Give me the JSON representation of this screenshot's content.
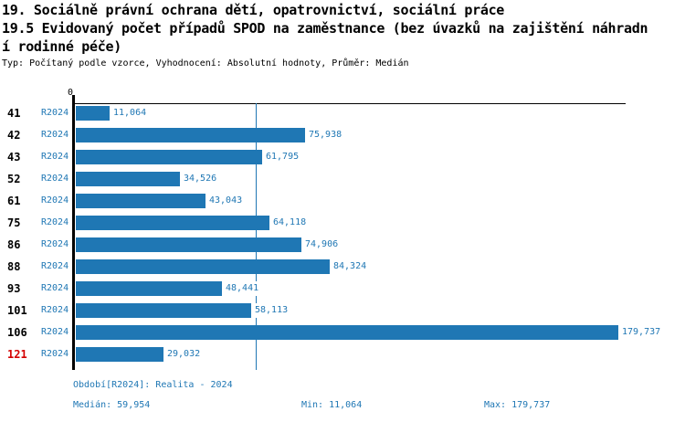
{
  "header": {
    "title_line1": "19. Sociálně právní ochrana dětí, opatrovnictví, sociální práce",
    "title_line2": "19.5 Evidovaný počet případů SPOD na zaměstnance (bez úvazků na zajištění náhradn",
    "title_line3": "í rodinné péče)",
    "meta": "Typ: Počítaný podle vzorce, Vyhodnocení: Absolutní hodnoty, Průměr: Medián"
  },
  "axis": {
    "zero_label": "0"
  },
  "chart_data": {
    "type": "bar",
    "orientation": "horizontal",
    "title": "19.5 Evidovaný počet případů SPOD na zaměstnance (bez úvazků na zajištění náhradní rodinné péče)",
    "categories": [
      "41",
      "42",
      "43",
      "52",
      "61",
      "75",
      "86",
      "88",
      "93",
      "101",
      "106",
      "121"
    ],
    "series": [
      {
        "name": "R2024",
        "values": [
          11064,
          75938,
          61795,
          34526,
          43043,
          64118,
          74906,
          84324,
          48441,
          58113,
          179737,
          29032
        ],
        "value_labels": [
          "11,064",
          "75,938",
          "61,795",
          "34,526",
          "43,043",
          "64,118",
          "74,906",
          "84,324",
          "48,441",
          "58,113",
          "179,737",
          "29,032"
        ]
      }
    ],
    "period_label": "R2024",
    "highlighted_categories": [
      "121"
    ],
    "median_value": 59954,
    "min_value": 11064,
    "max_value": 179737,
    "xlim": [
      0,
      182000
    ],
    "grid": false,
    "legend_position": "none",
    "bar_color": "#1f77b4",
    "median_line_color": "#1f77b4",
    "highlight_color": "#d40000"
  },
  "footer": {
    "period": "Období[R2024]: Realita - 2024",
    "median": "Medián: 59,954",
    "min": "Min: 11,064",
    "max": "Max: 179,737"
  },
  "colors": {
    "bar_blue": "#1f77b4",
    "text_blue": "#1f77b4",
    "highlight_red": "#d40000",
    "axis_black": "#000000"
  }
}
